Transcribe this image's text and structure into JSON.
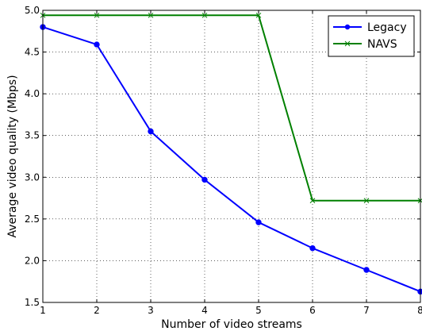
{
  "chart_data": {
    "type": "line",
    "title": "",
    "xlabel": "Number of video streams",
    "ylabel": "Average video quality (Mbps)",
    "xlim": [
      1,
      8
    ],
    "ylim": [
      1.5,
      5.0
    ],
    "x_ticks": [
      "1",
      "2",
      "3",
      "4",
      "5",
      "6",
      "7",
      "8"
    ],
    "y_ticks": [
      "1.5",
      "2.0",
      "2.5",
      "3.0",
      "3.5",
      "4.0",
      "4.5",
      "5.0"
    ],
    "grid": true,
    "legend_position": "top-right",
    "x": [
      1,
      2,
      3,
      4,
      5,
      6,
      7,
      8
    ],
    "series": [
      {
        "name": "Legacy",
        "color": "#0000ff",
        "marker": "circle",
        "values": [
          4.8,
          4.59,
          3.55,
          2.97,
          2.46,
          2.15,
          1.89,
          1.63
        ]
      },
      {
        "name": "NAVS",
        "color": "#008000",
        "marker": "x",
        "values": [
          4.94,
          4.94,
          4.94,
          4.94,
          4.94,
          2.72,
          2.72,
          2.72
        ]
      }
    ]
  }
}
